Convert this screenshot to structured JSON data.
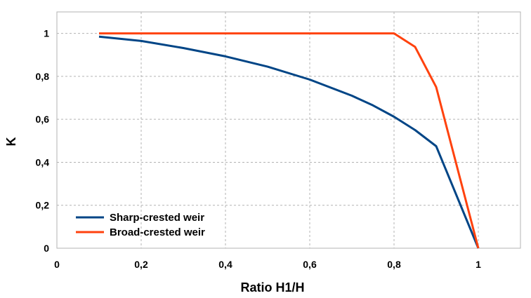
{
  "chart_data": {
    "type": "line",
    "title": "",
    "xlabel": "Ratio H1/H",
    "ylabel": "K",
    "xlim": [
      0,
      1.1
    ],
    "ylim": [
      0,
      1.1
    ],
    "x_ticks": [
      0,
      0.2,
      0.4,
      0.6,
      0.8,
      1
    ],
    "x_tick_labels": [
      "0",
      "0,2",
      "0,4",
      "0,6",
      "0,8",
      "1"
    ],
    "y_ticks": [
      0,
      0.2,
      0.4,
      0.6,
      0.8,
      1
    ],
    "y_tick_labels": [
      "0",
      "0,2",
      "0,4",
      "0,6",
      "0,8",
      "1"
    ],
    "grid": true,
    "legend_position": "bottom-left",
    "series": [
      {
        "name": "Sharp-crested weir",
        "color": "#004586",
        "x": [
          0.1,
          0.2,
          0.3,
          0.4,
          0.5,
          0.6,
          0.7,
          0.75,
          0.8,
          0.85,
          0.9,
          1.0
        ],
        "y": [
          0.985,
          0.965,
          0.932,
          0.893,
          0.845,
          0.785,
          0.71,
          0.665,
          0.612,
          0.55,
          0.475,
          0.0
        ]
      },
      {
        "name": "Broad-crested weir",
        "color": "#ff420e",
        "x": [
          0.1,
          0.8,
          0.85,
          0.9,
          1.0
        ],
        "y": [
          1.0,
          1.0,
          0.937,
          0.75,
          0.0
        ]
      }
    ]
  }
}
